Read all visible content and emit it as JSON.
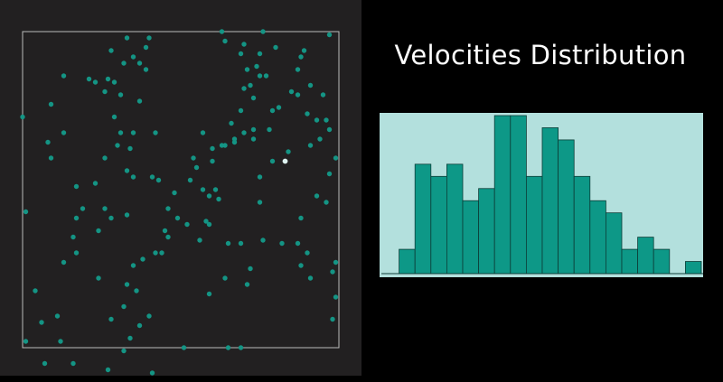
{
  "colors": {
    "panel_background": "#222021",
    "box_border": "#bbbbbb",
    "particle": "#149484",
    "tracked_particle": "#dff3f0",
    "chart_background": "#b3e0dd",
    "bar_fill": "#0d9887",
    "bar_stroke": "#0c3d37"
  },
  "simulation": {
    "particles": [
      [
        0,
        27
      ],
      [
        9,
        23
      ],
      [
        9,
        40
      ],
      [
        4,
        82
      ],
      [
        1,
        98
      ],
      [
        12,
        98
      ],
      [
        1,
        57
      ],
      [
        7,
        105
      ],
      [
        16,
        105
      ],
      [
        27,
        107
      ],
      [
        11,
        90
      ],
      [
        6,
        92
      ],
      [
        13,
        73
      ],
      [
        24,
        78
      ],
      [
        28,
        91
      ],
      [
        24,
        63
      ],
      [
        20,
        110
      ],
      [
        17,
        70
      ],
      [
        17,
        49
      ],
      [
        23,
        48
      ],
      [
        21,
        15
      ],
      [
        8,
        35
      ],
      [
        13,
        14
      ],
      [
        13,
        32
      ],
      [
        16,
        65
      ],
      [
        17,
        59
      ],
      [
        19,
        56
      ],
      [
        26,
        56
      ],
      [
        28,
        59
      ],
      [
        33,
        58
      ],
      [
        33,
        80
      ],
      [
        34,
        97
      ],
      [
        37,
        93
      ],
      [
        32,
        87
      ],
      [
        32,
        101
      ],
      [
        40,
        90
      ],
      [
        41,
        108
      ],
      [
        36,
        82
      ],
      [
        35,
        74
      ],
      [
        38,
        72
      ],
      [
        42,
        70
      ],
      [
        45,
        63
      ],
      [
        46,
        65
      ],
      [
        49,
        59
      ],
      [
        44,
        70
      ],
      [
        48,
        51
      ],
      [
        52,
        61
      ],
      [
        56,
        66
      ],
      [
        58,
        60
      ],
      [
        59,
        61
      ],
      [
        65,
        67
      ],
      [
        69,
        67
      ],
      [
        64,
        78
      ],
      [
        72,
        75
      ],
      [
        71,
        80
      ],
      [
        69,
        100
      ],
      [
        51,
        100
      ],
      [
        59,
        83
      ],
      [
        65,
        100
      ],
      [
        60,
        41
      ],
      [
        54,
        40
      ],
      [
        64,
        36
      ],
      [
        63,
        36
      ],
      [
        53,
        47
      ],
      [
        57,
        50
      ],
      [
        61,
        50
      ],
      [
        59,
        52
      ],
      [
        62,
        53
      ],
      [
        67,
        34
      ],
      [
        73,
        34
      ],
      [
        70,
        32
      ],
      [
        75,
        46
      ],
      [
        79,
        41
      ],
      [
        84,
        38
      ],
      [
        88,
        59
      ],
      [
        75,
        54
      ],
      [
        76,
        66
      ],
      [
        82,
        67
      ],
      [
        87,
        67
      ],
      [
        88,
        74
      ],
      [
        90,
        70
      ],
      [
        91,
        78
      ],
      [
        98,
        76
      ],
      [
        98,
        91
      ],
      [
        99,
        84
      ],
      [
        99,
        73
      ],
      [
        96,
        54
      ],
      [
        93,
        52
      ],
      [
        91,
        36
      ],
      [
        96,
        28
      ],
      [
        97,
        31
      ],
      [
        90,
        26
      ],
      [
        85,
        19
      ],
      [
        87,
        20
      ],
      [
        81,
        24
      ],
      [
        79,
        25
      ],
      [
        78,
        31
      ],
      [
        73,
        31
      ],
      [
        70,
        18
      ],
      [
        73,
        21
      ],
      [
        75,
        14
      ],
      [
        77,
        14
      ],
      [
        74,
        11
      ],
      [
        71,
        12
      ],
      [
        72,
        17
      ],
      [
        69,
        25
      ],
      [
        67,
        35
      ],
      [
        66,
        29
      ],
      [
        60,
        37
      ],
      [
        63,
        0
      ],
      [
        64,
        3
      ],
      [
        69,
        7
      ],
      [
        70,
        4
      ],
      [
        75,
        7
      ],
      [
        76,
        0
      ],
      [
        80,
        5
      ],
      [
        88,
        8
      ],
      [
        89,
        6
      ],
      [
        87,
        12
      ],
      [
        91,
        17
      ],
      [
        93,
        28
      ],
      [
        94,
        34
      ],
      [
        97,
        45
      ],
      [
        99,
        40
      ],
      [
        97,
        1
      ],
      [
        95,
        20
      ],
      [
        33,
        2
      ],
      [
        28,
        6
      ],
      [
        32,
        10
      ],
      [
        29,
        16
      ],
      [
        31,
        20
      ],
      [
        26,
        19
      ],
      [
        23,
        16
      ],
      [
        35,
        8
      ],
      [
        37,
        10
      ],
      [
        39,
        5
      ],
      [
        40,
        2
      ],
      [
        39,
        12
      ],
      [
        37,
        22
      ],
      [
        35,
        32
      ],
      [
        34,
        37
      ],
      [
        33,
        44
      ],
      [
        30,
        36
      ],
      [
        26,
        40
      ],
      [
        27,
        15
      ],
      [
        29,
        27
      ],
      [
        31,
        32
      ],
      [
        35,
        46
      ],
      [
        41,
        46
      ],
      [
        43,
        47
      ],
      [
        46,
        56
      ],
      [
        57,
        32
      ],
      [
        55,
        43
      ],
      [
        42,
        32
      ]
    ],
    "tracked_particle": [
      83,
      41
    ]
  },
  "chart_data": {
    "type": "bar",
    "title": "Velocities Distribution",
    "xlabel": "",
    "ylabel": "",
    "bins": 20,
    "values": [
      0,
      2,
      9,
      8,
      9,
      6,
      7,
      13,
      13,
      8,
      12,
      11,
      8,
      6,
      5,
      2,
      3,
      2,
      0,
      1
    ],
    "ylim": [
      0,
      13
    ]
  }
}
